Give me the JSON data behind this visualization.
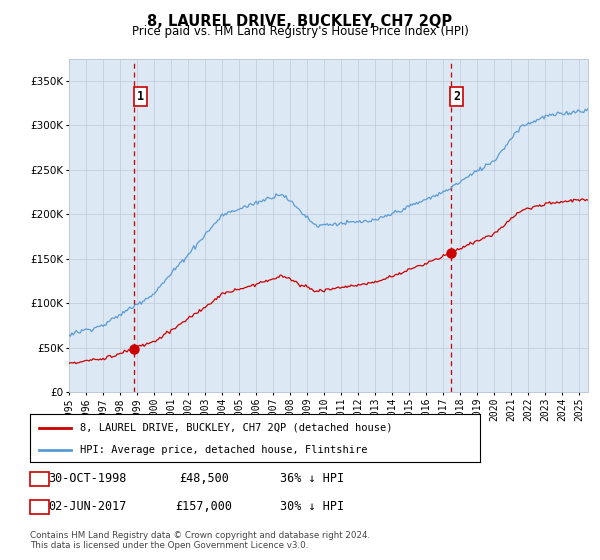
{
  "title": "8, LAUREL DRIVE, BUCKLEY, CH7 2QP",
  "subtitle": "Price paid vs. HM Land Registry's House Price Index (HPI)",
  "sale1_date": "30-OCT-1998",
  "sale1_price": 48500,
  "sale1_label": "36% ↓ HPI",
  "sale1_year": 1998.83,
  "sale2_date": "02-JUN-2017",
  "sale2_price": 157000,
  "sale2_label": "30% ↓ HPI",
  "sale2_year": 2017.42,
  "legend_property": "8, LAUREL DRIVE, BUCKLEY, CH7 2QP (detached house)",
  "legend_hpi": "HPI: Average price, detached house, Flintshire",
  "footnote": "Contains HM Land Registry data © Crown copyright and database right 2024.\nThis data is licensed under the Open Government Licence v3.0.",
  "bg_color": "#dce9f5",
  "hpi_color": "#5b9bd5",
  "price_color": "#cc0000",
  "vline_color": "#cc0000",
  "ylim": [
    0,
    375000
  ],
  "yticks": [
    0,
    50000,
    100000,
    150000,
    200000,
    250000,
    300000,
    350000
  ],
  "xlim_start": 1995.0,
  "xlim_end": 2025.5
}
